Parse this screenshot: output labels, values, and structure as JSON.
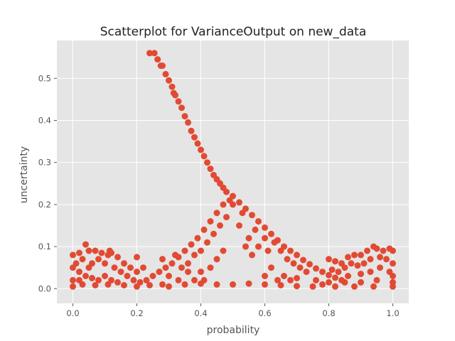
{
  "chart_data": {
    "type": "scatter",
    "title": "Scatterplot for VarianceOutput on new_data",
    "xlabel": "probability",
    "ylabel": "uncertainty",
    "xlim": [
      -0.05,
      1.05
    ],
    "ylim": [
      -0.035,
      0.59
    ],
    "xticks": [
      "0.0",
      "0.2",
      "0.4",
      "0.6",
      "0.8",
      "1.0"
    ],
    "yticks": [
      "0.0",
      "0.1",
      "0.2",
      "0.3",
      "0.4",
      "0.5"
    ],
    "grid": true,
    "background_color": "#E5E5E5",
    "grid_color": "#FFFFFF",
    "marker_color": "#E24A33",
    "series": [
      {
        "points": [
          [
            0.24,
            0.56
          ],
          [
            0.255,
            0.56
          ],
          [
            0.265,
            0.545
          ],
          [
            0.275,
            0.53
          ],
          [
            0.28,
            0.53
          ],
          [
            0.29,
            0.51
          ],
          [
            0.3,
            0.495
          ],
          [
            0.31,
            0.48
          ],
          [
            0.315,
            0.465
          ],
          [
            0.32,
            0.46
          ],
          [
            0.33,
            0.445
          ],
          [
            0.34,
            0.43
          ],
          [
            0.35,
            0.41
          ],
          [
            0.36,
            0.395
          ],
          [
            0.37,
            0.375
          ],
          [
            0.38,
            0.36
          ],
          [
            0.39,
            0.345
          ],
          [
            0.4,
            0.33
          ],
          [
            0.41,
            0.315
          ],
          [
            0.42,
            0.3
          ],
          [
            0.43,
            0.285
          ],
          [
            0.44,
            0.27
          ],
          [
            0.45,
            0.26
          ],
          [
            0.46,
            0.25
          ],
          [
            0.47,
            0.24
          ],
          [
            0.48,
            0.23
          ],
          [
            0.5,
            0.22
          ],
          [
            0.52,
            0.205
          ],
          [
            0.54,
            0.19
          ],
          [
            0.56,
            0.175
          ],
          [
            0.58,
            0.16
          ],
          [
            0.6,
            0.145
          ],
          [
            0.62,
            0.13
          ],
          [
            0.64,
            0.115
          ],
          [
            0.66,
            0.1
          ],
          [
            0.68,
            0.09
          ],
          [
            0.7,
            0.08
          ],
          [
            0.72,
            0.068
          ],
          [
            0.74,
            0.058
          ],
          [
            0.76,
            0.048
          ],
          [
            0.78,
            0.04
          ],
          [
            0.8,
            0.032
          ],
          [
            0.82,
            0.026
          ],
          [
            0.84,
            0.02
          ],
          [
            0.23,
            0.02
          ],
          [
            0.25,
            0.03
          ],
          [
            0.27,
            0.04
          ],
          [
            0.29,
            0.05
          ],
          [
            0.31,
            0.06
          ],
          [
            0.33,
            0.075
          ],
          [
            0.35,
            0.09
          ],
          [
            0.37,
            0.105
          ],
          [
            0.39,
            0.12
          ],
          [
            0.41,
            0.14
          ],
          [
            0.43,
            0.16
          ],
          [
            0.45,
            0.18
          ],
          [
            0.47,
            0.2
          ],
          [
            0.49,
            0.21
          ],
          [
            0.5,
            0.2
          ],
          [
            0.3,
            0.03
          ],
          [
            0.34,
            0.05
          ],
          [
            0.38,
            0.08
          ],
          [
            0.42,
            0.11
          ],
          [
            0.46,
            0.15
          ],
          [
            0.36,
            0.06
          ],
          [
            0.4,
            0.09
          ],
          [
            0.44,
            0.13
          ],
          [
            0.48,
            0.17
          ],
          [
            0.52,
            0.15
          ],
          [
            0.55,
            0.12
          ],
          [
            0.58,
            0.1
          ],
          [
            0.61,
            0.09
          ],
          [
            0.53,
            0.18
          ],
          [
            0.57,
            0.14
          ],
          [
            0.6,
            0.12
          ],
          [
            0.63,
            0.11
          ],
          [
            0.65,
            0.09
          ],
          [
            0.67,
            0.07
          ],
          [
            0.69,
            0.06
          ],
          [
            0.71,
            0.05
          ],
          [
            0.73,
            0.04
          ],
          [
            0.66,
            0.03
          ],
          [
            0.68,
            0.02
          ],
          [
            0.62,
            0.05
          ],
          [
            0.56,
            0.08
          ],
          [
            0.54,
            0.1
          ],
          [
            0.4,
            0.04
          ],
          [
            0.43,
            0.05
          ],
          [
            0.38,
            0.02
          ],
          [
            0.45,
            0.07
          ],
          [
            0.47,
            0.09
          ],
          [
            0.33,
            0.02
          ],
          [
            0.28,
            0.01
          ],
          [
            0.0,
            0.08
          ],
          [
            0.02,
            0.085
          ],
          [
            0.04,
            0.105
          ],
          [
            0.05,
            0.09
          ],
          [
            0.07,
            0.09
          ],
          [
            0.09,
            0.085
          ],
          [
            0.11,
            0.08
          ],
          [
            0.115,
            0.09
          ],
          [
            0.12,
            0.085
          ],
          [
            0.14,
            0.075
          ],
          [
            0.16,
            0.06
          ],
          [
            0.18,
            0.05
          ],
          [
            0.2,
            0.04
          ],
          [
            0.0,
            0.05
          ],
          [
            0.01,
            0.06
          ],
          [
            0.02,
            0.04
          ],
          [
            0.03,
            0.07
          ],
          [
            0.05,
            0.05
          ],
          [
            0.06,
            0.06
          ],
          [
            0.08,
            0.07
          ],
          [
            0.1,
            0.06
          ],
          [
            0.13,
            0.05
          ],
          [
            0.15,
            0.04
          ],
          [
            0.17,
            0.03
          ],
          [
            0.19,
            0.02
          ],
          [
            0.21,
            0.015
          ],
          [
            0.0,
            0.02
          ],
          [
            0.02,
            0.02
          ],
          [
            0.04,
            0.03
          ],
          [
            0.06,
            0.025
          ],
          [
            0.08,
            0.02
          ],
          [
            0.1,
            0.03
          ],
          [
            0.12,
            0.02
          ],
          [
            0.14,
            0.015
          ],
          [
            0.0,
            0.005
          ],
          [
            0.03,
            0.01
          ],
          [
            0.07,
            0.008
          ],
          [
            0.11,
            0.01
          ],
          [
            0.16,
            0.008
          ],
          [
            0.2,
            0.005
          ],
          [
            0.24,
            0.008
          ],
          [
            0.3,
            0.005
          ],
          [
            0.35,
            0.01
          ],
          [
            0.4,
            0.012
          ],
          [
            0.45,
            0.01
          ],
          [
            0.5,
            0.01
          ],
          [
            0.55,
            0.012
          ],
          [
            0.6,
            0.01
          ],
          [
            0.65,
            0.008
          ],
          [
            0.7,
            0.006
          ],
          [
            0.75,
            0.005
          ],
          [
            0.2,
            0.075
          ],
          [
            0.22,
            0.05
          ],
          [
            0.28,
            0.07
          ],
          [
            0.32,
            0.08
          ],
          [
            0.36,
            0.04
          ],
          [
            0.41,
            0.02
          ],
          [
            0.6,
            0.03
          ],
          [
            0.64,
            0.02
          ],
          [
            0.7,
            0.025
          ],
          [
            0.8,
            0.07
          ],
          [
            0.82,
            0.065
          ],
          [
            0.84,
            0.06
          ],
          [
            0.86,
            0.075
          ],
          [
            0.88,
            0.08
          ],
          [
            0.9,
            0.08
          ],
          [
            0.92,
            0.09
          ],
          [
            0.94,
            0.1
          ],
          [
            0.95,
            0.095
          ],
          [
            0.97,
            0.09
          ],
          [
            0.99,
            0.095
          ],
          [
            1.0,
            0.09
          ],
          [
            0.81,
            0.045
          ],
          [
            0.83,
            0.04
          ],
          [
            0.85,
            0.05
          ],
          [
            0.87,
            0.06
          ],
          [
            0.89,
            0.055
          ],
          [
            0.91,
            0.06
          ],
          [
            0.93,
            0.07
          ],
          [
            0.96,
            0.075
          ],
          [
            0.98,
            0.07
          ],
          [
            1.0,
            0.06
          ],
          [
            0.86,
            0.03
          ],
          [
            0.9,
            0.035
          ],
          [
            0.93,
            0.04
          ],
          [
            0.96,
            0.05
          ],
          [
            0.99,
            0.04
          ],
          [
            1.0,
            0.03
          ],
          [
            0.8,
            0.015
          ],
          [
            0.85,
            0.015
          ],
          [
            0.9,
            0.015
          ],
          [
            0.95,
            0.02
          ],
          [
            1.0,
            0.015
          ],
          [
            0.82,
            0.005
          ],
          [
            0.88,
            0.005
          ],
          [
            0.94,
            0.005
          ],
          [
            1.0,
            0.005
          ],
          [
            0.78,
            0.01
          ],
          [
            0.76,
            0.02
          ]
        ]
      }
    ]
  }
}
